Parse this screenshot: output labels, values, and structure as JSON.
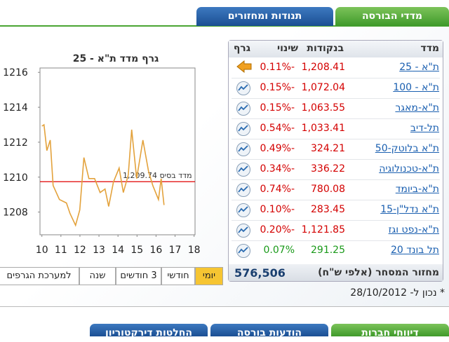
{
  "tabs_top": [
    "מדדי הבורסה",
    "תנודות ומחזורים"
  ],
  "table": {
    "headers": [
      "מדד",
      "בנקודות",
      "שינוי",
      "גרף"
    ],
    "rows": [
      [
        "ת\"א - 25",
        "1,208.41",
        "-0.11%"
      ],
      [
        "ת\"א - 100",
        "1,072.04",
        "-0.15%"
      ],
      [
        "ת\"א-מאגר",
        "1,063.55",
        "-0.15%"
      ],
      [
        "תל-דיב",
        "1,033.41",
        "-0.54%"
      ],
      [
        "ת\"א בלוטק-50",
        "324.21",
        "-0.49%"
      ],
      [
        "ת\"א-טכנולוגיה",
        "336.22",
        "-0.34%"
      ],
      [
        "ת\"א-ביומד",
        "780.08",
        "-0.74%"
      ],
      [
        "ת\"א נדל\"ן-15",
        "283.45",
        "-0.10%"
      ],
      [
        "ת\"א-נפט וגז",
        "1,121.85",
        "-0.20%"
      ],
      [
        "תל בונד 20",
        "291.25",
        "0.07%"
      ]
    ],
    "footer_label": "מחזור המסחר (אלפי ש\"ח)",
    "footer_value": "576,506"
  },
  "note": "* נכון ל- 28/10/2012",
  "periods": [
    "יומי",
    "חודשי",
    "3 חודשים",
    "שנה",
    "למערכת הגרפים"
  ],
  "tabs_bottom": [
    "דיווחי חברות",
    "הודעות בורסה",
    "החלטות דירקטוריון"
  ],
  "chart_data": {
    "type": "line",
    "title": "גרף מדד ת\"א - 25",
    "x": [
      10.0,
      10.11,
      10.26,
      10.44,
      10.59,
      10.92,
      11.29,
      11.48,
      11.77,
      11.99,
      12.21,
      12.47,
      12.77,
      13.06,
      13.32,
      13.51,
      13.76,
      14.06,
      14.28,
      14.54,
      14.72,
      14.98,
      15.31,
      15.61,
      15.83,
      16.13,
      16.27,
      16.42
    ],
    "series": [
      {
        "color": "#e3a23c",
        "values": [
          1212.92,
          1213.0,
          1211.52,
          1212.12,
          1209.52,
          1208.72,
          1208.52,
          1207.92,
          1207.24,
          1208.12,
          1211.12,
          1209.92,
          1209.92,
          1209.12,
          1209.32,
          1208.32,
          1209.72,
          1210.52,
          1209.12,
          1210.12,
          1212.72,
          1209.92,
          1212.12,
          1210.32,
          1209.52,
          1208.72,
          1209.92,
          1208.4
        ]
      }
    ],
    "reference_line": {
      "value": 1209.74,
      "label": "מדד בסיס 1,209.74",
      "color": "#e00000"
    },
    "xlim": [
      9.9,
      18.05
    ],
    "xticks": [
      10,
      11,
      12,
      13,
      14,
      15,
      16,
      17,
      18
    ],
    "ylim": [
      1206.7,
      1216.25
    ],
    "yticks": [
      1208,
      1210,
      1212,
      1214,
      1216
    ],
    "grid": false
  }
}
